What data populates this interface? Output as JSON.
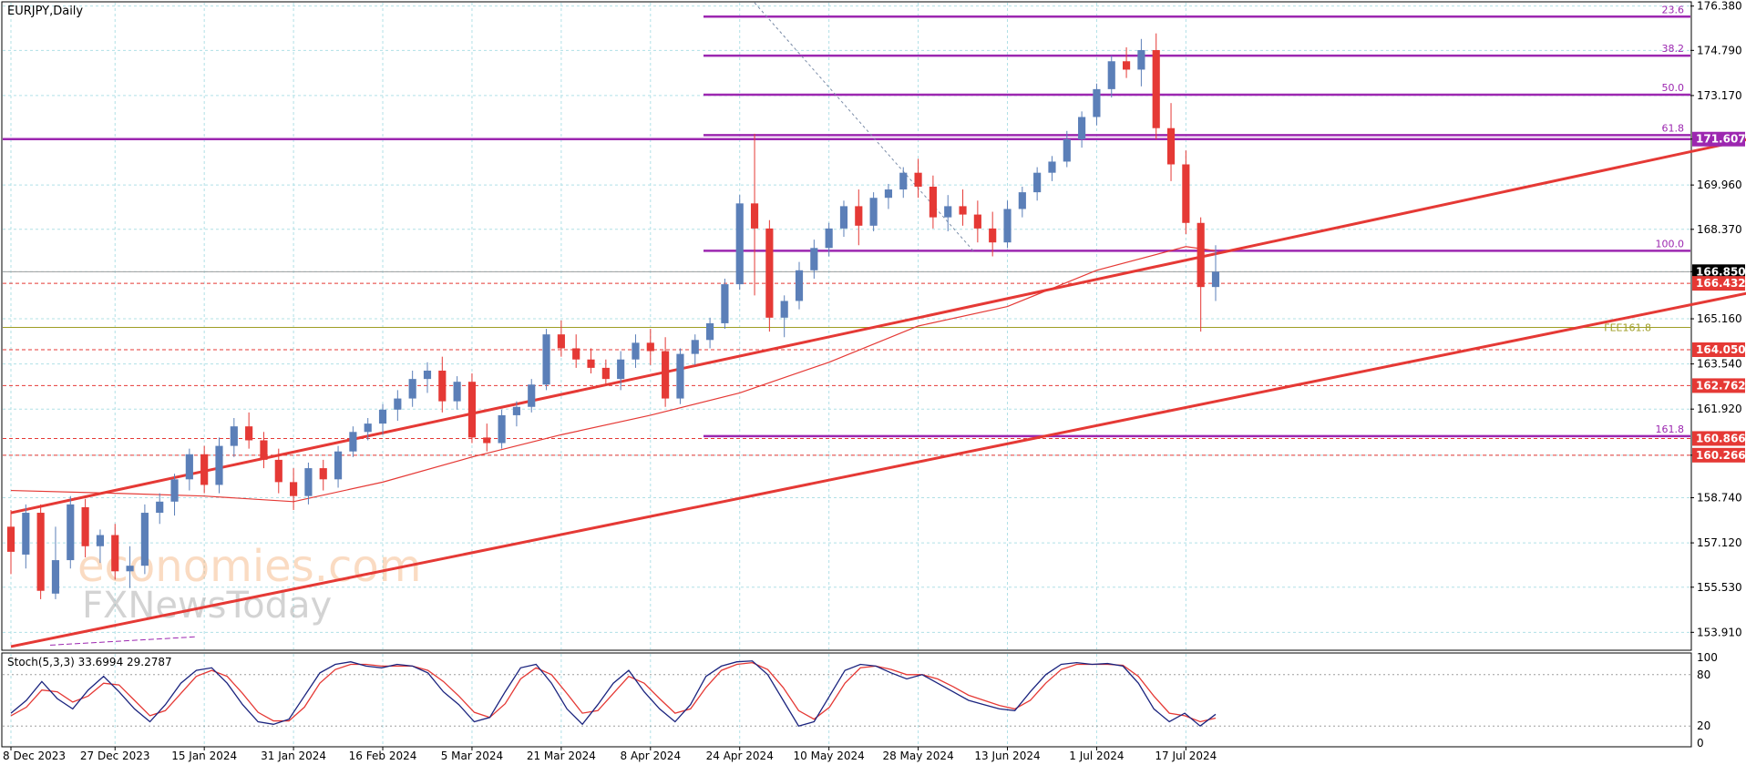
{
  "chart_data": {
    "type": "candlestick",
    "title": "EURJPY,Daily",
    "y_axis": {
      "ticks": [
        "176.380",
        "174.790",
        "173.170",
        "171.607",
        "169.960",
        "168.370",
        "166.850",
        "165.160",
        "163.540",
        "161.920",
        "160.266",
        "158.740",
        "157.120",
        "155.530",
        "153.910"
      ],
      "range": [
        153.3,
        176.5
      ]
    },
    "x_axis": {
      "ticks": [
        "8 Dec 2023",
        "27 Dec 2023",
        "15 Jan 2024",
        "31 Jan 2024",
        "16 Feb 2024",
        "5 Mar 2024",
        "21 Mar 2024",
        "8 Apr 2024",
        "24 Apr 2024",
        "10 May 2024",
        "28 May 2024",
        "13 Jun 2024",
        "1 Jul 2024",
        "17 Jul 2024"
      ]
    },
    "price_labels": [
      {
        "value": "171.607",
        "color": "#9c27b0"
      },
      {
        "value": "166.850",
        "color": "#000000"
      },
      {
        "value": "166.432",
        "color": "#e53935"
      },
      {
        "value": "164.050",
        "color": "#e53935"
      },
      {
        "value": "162.762",
        "color": "#e53935"
      },
      {
        "value": "160.866",
        "color": "#e53935"
      },
      {
        "value": "160.266",
        "color": "#e53935"
      }
    ],
    "fibonacci": {
      "color": "#9c27b0",
      "levels": [
        {
          "label": "23.6",
          "price": 176.0
        },
        {
          "label": "38.2",
          "price": 174.6
        },
        {
          "label": "50.0",
          "price": 173.2
        },
        {
          "label": "61.8",
          "price": 171.75
        },
        {
          "label": "100.0",
          "price": 167.6
        },
        {
          "label": "161.8",
          "price": 160.95
        }
      ]
    },
    "horizontal_lines": [
      {
        "price": 171.607,
        "color": "#9c27b0",
        "style": "solid"
      },
      {
        "price": 166.432,
        "color": "#e53935",
        "style": "dashed"
      },
      {
        "price": 164.05,
        "color": "#e53935",
        "style": "dashed"
      },
      {
        "price": 162.762,
        "color": "#e53935",
        "style": "dashed"
      },
      {
        "price": 160.866,
        "color": "#e53935",
        "style": "dashed"
      },
      {
        "price": 160.266,
        "color": "#e53935",
        "style": "dashed"
      },
      {
        "price": 166.85,
        "color": "#9e9e9e",
        "style": "solid"
      },
      {
        "price": 164.85,
        "color": "#9e9d24",
        "style": "solid",
        "label": "FEE161.8"
      }
    ],
    "channel": {
      "color": "#e53935",
      "upper": {
        "from": {
          "date_index": 0,
          "price": 158.2
        },
        "to": {
          "date_index": 163,
          "price": 176.9
        }
      },
      "lower": {
        "from": {
          "date_index": 0,
          "price": 153.4
        },
        "to": {
          "date_index": 163,
          "price": 171.1
        }
      }
    },
    "ma": [
      {
        "date": "8 Dec 2023",
        "value": 159.0
      },
      {
        "date": "27 Dec 2023",
        "value": 158.9
      },
      {
        "date": "15 Jan 2024",
        "value": 158.8
      },
      {
        "date": "31 Jan 2024",
        "value": 158.6
      },
      {
        "date": "16 Feb 2024",
        "value": 159.3
      },
      {
        "date": "5 Mar 2024",
        "value": 160.2
      },
      {
        "date": "21 Mar 2024",
        "value": 161.0
      },
      {
        "date": "8 Apr 2024",
        "value": 161.7
      },
      {
        "date": "24 Apr 2024",
        "value": 162.5
      },
      {
        "date": "10 May 2024",
        "value": 163.6
      },
      {
        "date": "28 May 2024",
        "value": 164.9
      },
      {
        "date": "13 Jun 2024",
        "value": 165.6
      },
      {
        "date": "1 Jul 2024",
        "value": 166.9
      },
      {
        "date": "17 Jul 2024",
        "value": 167.75
      },
      {
        "date": "22 Jul 2024",
        "value": 167.6
      }
    ],
    "candles": [
      {
        "date": "8 Dec 2023",
        "o": 157.7,
        "h": 158.3,
        "l": 156.0,
        "c": 156.8
      },
      {
        "date": "11 Dec 2023",
        "o": 156.7,
        "h": 158.5,
        "l": 156.2,
        "c": 158.2
      },
      {
        "date": "13 Dec 2023",
        "o": 158.2,
        "h": 158.5,
        "l": 155.1,
        "c": 155.4
      },
      {
        "date": "15 Dec 2023",
        "o": 155.3,
        "h": 157.7,
        "l": 155.1,
        "c": 156.5
      },
      {
        "date": "18 Dec 2023",
        "o": 156.5,
        "h": 158.8,
        "l": 156.2,
        "c": 158.5
      },
      {
        "date": "20 Dec 2023",
        "o": 158.4,
        "h": 158.7,
        "l": 156.6,
        "c": 157.0
      },
      {
        "date": "22 Dec 2023",
        "o": 157.0,
        "h": 157.6,
        "l": 156.4,
        "c": 157.4
      },
      {
        "date": "27 Dec 2023",
        "o": 157.4,
        "h": 157.8,
        "l": 155.8,
        "c": 156.1
      },
      {
        "date": "29 Dec 2023",
        "o": 156.1,
        "h": 157.0,
        "l": 155.5,
        "c": 156.3
      },
      {
        "date": "3 Jan 2024",
        "o": 156.3,
        "h": 158.5,
        "l": 156.0,
        "c": 158.2
      },
      {
        "date": "5 Jan 2024",
        "o": 158.2,
        "h": 158.9,
        "l": 157.8,
        "c": 158.6
      },
      {
        "date": "9 Jan 2024",
        "o": 158.6,
        "h": 159.6,
        "l": 158.1,
        "c": 159.4
      },
      {
        "date": "11 Jan 2024",
        "o": 159.4,
        "h": 160.5,
        "l": 159.0,
        "c": 160.3
      },
      {
        "date": "15 Jan 2024",
        "o": 160.3,
        "h": 160.6,
        "l": 158.9,
        "c": 159.2
      },
      {
        "date": "17 Jan 2024",
        "o": 159.2,
        "h": 160.9,
        "l": 158.9,
        "c": 160.6
      },
      {
        "date": "19 Jan 2024",
        "o": 160.6,
        "h": 161.6,
        "l": 160.2,
        "c": 161.3
      },
      {
        "date": "23 Jan 2024",
        "o": 161.3,
        "h": 161.8,
        "l": 160.5,
        "c": 160.8
      },
      {
        "date": "25 Jan 2024",
        "o": 160.8,
        "h": 161.1,
        "l": 159.8,
        "c": 160.1
      },
      {
        "date": "29 Jan 2024",
        "o": 160.1,
        "h": 160.5,
        "l": 158.9,
        "c": 159.3
      },
      {
        "date": "31 Jan 2024",
        "o": 159.3,
        "h": 159.8,
        "l": 158.3,
        "c": 158.8
      },
      {
        "date": "2 Feb 2024",
        "o": 158.8,
        "h": 160.0,
        "l": 158.5,
        "c": 159.8
      },
      {
        "date": "6 Feb 2024",
        "o": 159.8,
        "h": 160.1,
        "l": 159.0,
        "c": 159.4
      },
      {
        "date": "8 Feb 2024",
        "o": 159.4,
        "h": 160.6,
        "l": 159.1,
        "c": 160.4
      },
      {
        "date": "12 Feb 2024",
        "o": 160.4,
        "h": 161.3,
        "l": 160.2,
        "c": 161.1
      },
      {
        "date": "14 Feb 2024",
        "o": 161.1,
        "h": 161.6,
        "l": 160.8,
        "c": 161.4
      },
      {
        "date": "16 Feb 2024",
        "o": 161.4,
        "h": 162.1,
        "l": 161.0,
        "c": 161.9
      },
      {
        "date": "20 Feb 2024",
        "o": 161.9,
        "h": 162.6,
        "l": 161.5,
        "c": 162.3
      },
      {
        "date": "22 Feb 2024",
        "o": 162.3,
        "h": 163.3,
        "l": 162.0,
        "c": 163.0
      },
      {
        "date": "26 Feb 2024",
        "o": 163.0,
        "h": 163.6,
        "l": 162.5,
        "c": 163.3
      },
      {
        "date": "28 Feb 2024",
        "o": 163.3,
        "h": 163.8,
        "l": 161.8,
        "c": 162.2
      },
      {
        "date": "1 Mar 2024",
        "o": 162.2,
        "h": 163.1,
        "l": 161.9,
        "c": 162.9
      },
      {
        "date": "5 Mar 2024",
        "o": 162.9,
        "h": 163.2,
        "l": 160.7,
        "c": 160.9
      },
      {
        "date": "7 Mar 2024",
        "o": 160.9,
        "h": 161.4,
        "l": 160.4,
        "c": 160.7
      },
      {
        "date": "11 Mar 2024",
        "o": 160.7,
        "h": 161.9,
        "l": 160.5,
        "c": 161.7
      },
      {
        "date": "13 Mar 2024",
        "o": 161.7,
        "h": 162.2,
        "l": 161.3,
        "c": 162.0
      },
      {
        "date": "15 Mar 2024",
        "o": 162.0,
        "h": 163.0,
        "l": 161.8,
        "c": 162.8
      },
      {
        "date": "19 Mar 2024",
        "o": 162.8,
        "h": 164.8,
        "l": 162.6,
        "c": 164.6
      },
      {
        "date": "21 Mar 2024",
        "o": 164.6,
        "h": 165.1,
        "l": 163.8,
        "c": 164.1
      },
      {
        "date": "25 Mar 2024",
        "o": 164.1,
        "h": 164.6,
        "l": 163.4,
        "c": 163.7
      },
      {
        "date": "27 Mar 2024",
        "o": 163.7,
        "h": 164.1,
        "l": 163.2,
        "c": 163.4
      },
      {
        "date": "29 Mar 2024",
        "o": 163.4,
        "h": 163.7,
        "l": 162.8,
        "c": 163.0
      },
      {
        "date": "2 Apr 2024",
        "o": 163.0,
        "h": 164.0,
        "l": 162.6,
        "c": 163.7
      },
      {
        "date": "4 Apr 2024",
        "o": 163.7,
        "h": 164.6,
        "l": 163.4,
        "c": 164.3
      },
      {
        "date": "8 Apr 2024",
        "o": 164.3,
        "h": 164.8,
        "l": 163.5,
        "c": 164.0
      },
      {
        "date": "10 Apr 2024",
        "o": 164.0,
        "h": 164.5,
        "l": 162.0,
        "c": 162.3
      },
      {
        "date": "12 Apr 2024",
        "o": 162.3,
        "h": 164.1,
        "l": 162.1,
        "c": 163.9
      },
      {
        "date": "16 Apr 2024",
        "o": 163.9,
        "h": 164.6,
        "l": 163.5,
        "c": 164.4
      },
      {
        "date": "18 Apr 2024",
        "o": 164.4,
        "h": 165.2,
        "l": 164.1,
        "c": 165.0
      },
      {
        "date": "22 Apr 2024",
        "o": 165.0,
        "h": 166.6,
        "l": 164.8,
        "c": 166.4
      },
      {
        "date": "24 Apr 2024",
        "o": 166.4,
        "h": 169.6,
        "l": 166.2,
        "c": 169.3
      },
      {
        "date": "26 Apr 2024",
        "o": 169.3,
        "h": 171.8,
        "l": 166.0,
        "c": 168.4
      },
      {
        "date": "30 Apr 2024",
        "o": 168.4,
        "h": 168.7,
        "l": 164.7,
        "c": 165.2
      },
      {
        "date": "2 May 2024",
        "o": 165.2,
        "h": 166.0,
        "l": 164.5,
        "c": 165.8
      },
      {
        "date": "6 May 2024",
        "o": 165.8,
        "h": 167.2,
        "l": 165.5,
        "c": 166.9
      },
      {
        "date": "8 May 2024",
        "o": 166.9,
        "h": 168.0,
        "l": 166.6,
        "c": 167.7
      },
      {
        "date": "10 May 2024",
        "o": 167.7,
        "h": 168.6,
        "l": 167.4,
        "c": 168.4
      },
      {
        "date": "14 May 2024",
        "o": 168.4,
        "h": 169.4,
        "l": 168.1,
        "c": 169.2
      },
      {
        "date": "16 May 2024",
        "o": 169.2,
        "h": 169.8,
        "l": 167.8,
        "c": 168.5
      },
      {
        "date": "20 May 2024",
        "o": 168.5,
        "h": 169.7,
        "l": 168.3,
        "c": 169.5
      },
      {
        "date": "22 May 2024",
        "o": 169.5,
        "h": 170.0,
        "l": 169.1,
        "c": 169.8
      },
      {
        "date": "24 May 2024",
        "o": 169.8,
        "h": 170.6,
        "l": 169.5,
        "c": 170.4
      },
      {
        "date": "28 May 2024",
        "o": 170.4,
        "h": 170.9,
        "l": 169.5,
        "c": 169.9
      },
      {
        "date": "30 May 2024",
        "o": 169.9,
        "h": 170.3,
        "l": 168.4,
        "c": 168.8
      },
      {
        "date": "3 Jun 2024",
        "o": 168.8,
        "h": 169.6,
        "l": 168.3,
        "c": 169.2
      },
      {
        "date": "5 Jun 2024",
        "o": 169.2,
        "h": 169.8,
        "l": 168.5,
        "c": 168.9
      },
      {
        "date": "7 Jun 2024",
        "o": 168.9,
        "h": 169.4,
        "l": 167.9,
        "c": 168.4
      },
      {
        "date": "11 Jun 2024",
        "o": 168.4,
        "h": 169.0,
        "l": 167.4,
        "c": 167.9
      },
      {
        "date": "13 Jun 2024",
        "o": 167.9,
        "h": 169.4,
        "l": 167.7,
        "c": 169.1
      },
      {
        "date": "17 Jun 2024",
        "o": 169.1,
        "h": 169.9,
        "l": 168.8,
        "c": 169.7
      },
      {
        "date": "19 Jun 2024",
        "o": 169.7,
        "h": 170.6,
        "l": 169.4,
        "c": 170.4
      },
      {
        "date": "21 Jun 2024",
        "o": 170.4,
        "h": 171.0,
        "l": 170.1,
        "c": 170.8
      },
      {
        "date": "25 Jun 2024",
        "o": 170.8,
        "h": 171.9,
        "l": 170.6,
        "c": 171.6
      },
      {
        "date": "27 Jun 2024",
        "o": 171.6,
        "h": 172.6,
        "l": 171.3,
        "c": 172.4
      },
      {
        "date": "1 Jul 2024",
        "o": 172.4,
        "h": 173.6,
        "l": 172.1,
        "c": 173.4
      },
      {
        "date": "3 Jul 2024",
        "o": 173.4,
        "h": 174.6,
        "l": 173.1,
        "c": 174.4
      },
      {
        "date": "5 Jul 2024",
        "o": 174.4,
        "h": 174.9,
        "l": 173.8,
        "c": 174.1
      },
      {
        "date": "9 Jul 2024",
        "o": 174.1,
        "h": 175.2,
        "l": 173.5,
        "c": 174.8
      },
      {
        "date": "11 Jul 2024",
        "o": 174.8,
        "h": 175.4,
        "l": 171.6,
        "c": 172.0
      },
      {
        "date": "15 Jul 2024",
        "o": 172.0,
        "h": 172.9,
        "l": 170.1,
        "c": 170.7
      },
      {
        "date": "17 Jul 2024",
        "o": 170.7,
        "h": 171.2,
        "l": 168.2,
        "c": 168.6
      },
      {
        "date": "19 Jul 2024",
        "o": 168.6,
        "h": 168.8,
        "l": 164.7,
        "c": 166.3
      },
      {
        "date": "22 Jul 2024",
        "o": 166.3,
        "h": 167.8,
        "l": 165.8,
        "c": 166.85
      }
    ],
    "stochastic": {
      "label": "Stoch(5,3,3) 33.6994 29.2787",
      "k_color": "#1a237e",
      "d_color": "#e53935",
      "levels": [
        "100",
        "80",
        "20",
        "0"
      ],
      "k": [
        35,
        50,
        72,
        52,
        40,
        62,
        78,
        60,
        40,
        25,
        45,
        70,
        85,
        88,
        70,
        45,
        25,
        22,
        28,
        55,
        82,
        92,
        95,
        90,
        88,
        92,
        90,
        82,
        60,
        45,
        25,
        30,
        60,
        88,
        92,
        70,
        40,
        22,
        45,
        70,
        85,
        60,
        40,
        25,
        45,
        78,
        90,
        95,
        96,
        80,
        50,
        20,
        25,
        55,
        85,
        92,
        90,
        82,
        75,
        80,
        70,
        60,
        50,
        45,
        40,
        38,
        60,
        80,
        92,
        94,
        92,
        93,
        90,
        70,
        40,
        25,
        35,
        20,
        33.7
      ],
      "d": [
        32,
        42,
        62,
        60,
        48,
        55,
        70,
        68,
        50,
        32,
        38,
        58,
        78,
        85,
        78,
        58,
        36,
        26,
        26,
        42,
        70,
        86,
        92,
        92,
        90,
        90,
        90,
        85,
        72,
        55,
        36,
        30,
        46,
        75,
        88,
        80,
        58,
        35,
        38,
        58,
        78,
        70,
        52,
        35,
        40,
        65,
        85,
        92,
        94,
        86,
        65,
        38,
        28,
        42,
        70,
        88,
        90,
        86,
        80,
        80,
        75,
        66,
        56,
        50,
        44,
        40,
        50,
        70,
        86,
        92,
        92,
        92,
        91,
        78,
        55,
        35,
        32,
        25,
        29.3
      ]
    },
    "annotations": {
      "fee_label": "FEE161.8"
    }
  },
  "watermark": {
    "line1": "economies.com",
    "line2": "FXNewsToday"
  },
  "colors": {
    "bull": "#5b7fb8",
    "bear": "#e53935",
    "grid": "#b0e0e6",
    "axis_bg": "#ffffff"
  }
}
